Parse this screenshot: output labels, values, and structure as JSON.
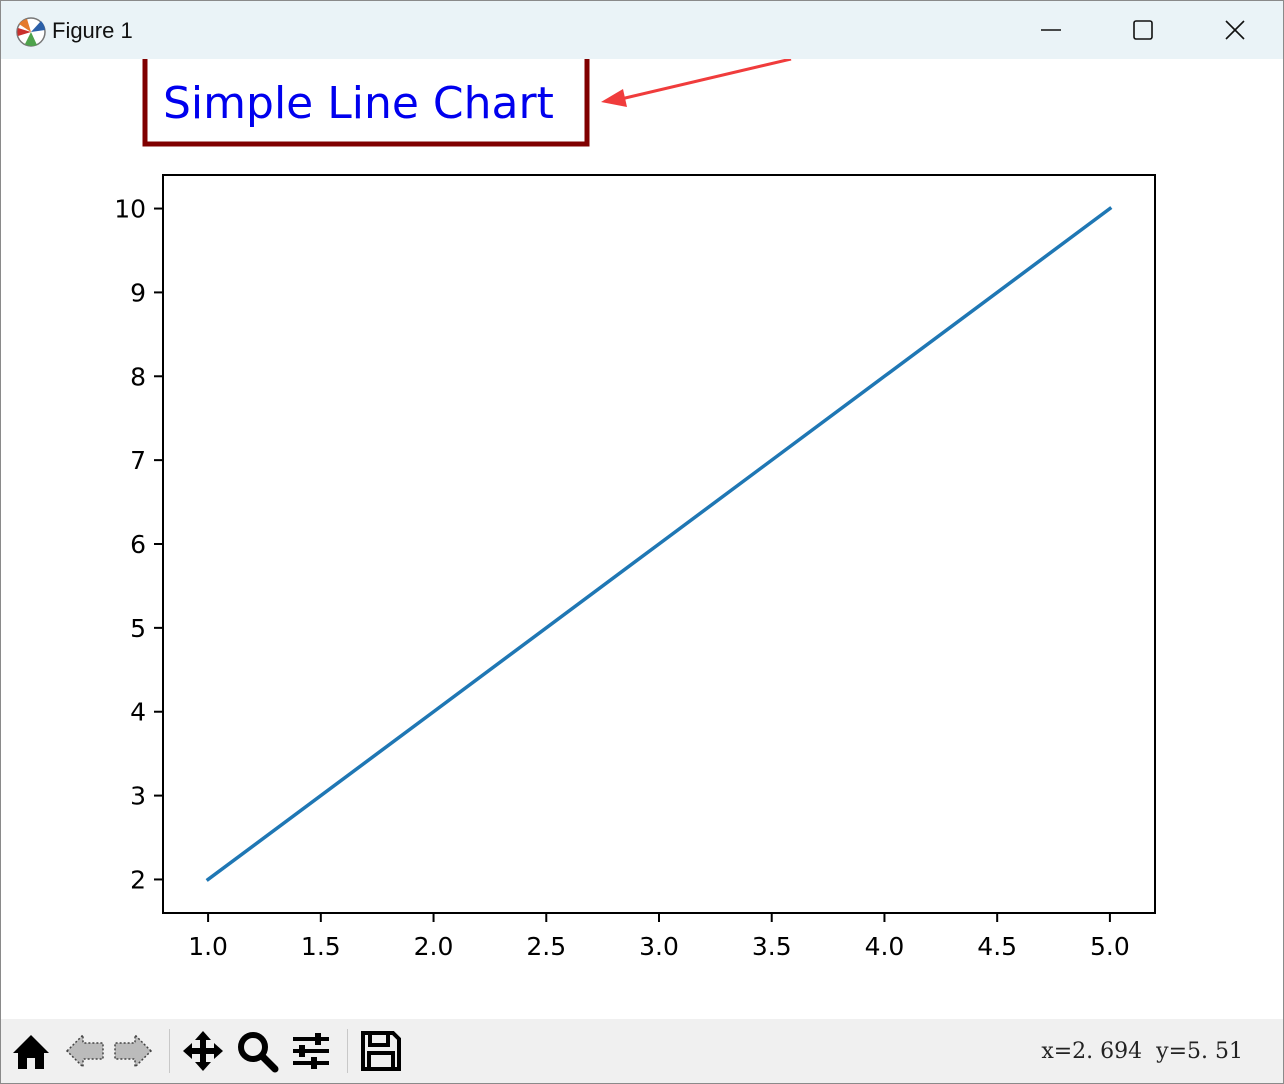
{
  "window": {
    "title": "Figure 1",
    "controls": [
      "minimize",
      "maximize",
      "close"
    ]
  },
  "annotation": {
    "text": "Simple Line Chart",
    "text_color": "#0000ee",
    "box_color": "#800000",
    "arrow_color": "#f03c3c"
  },
  "chart_data": {
    "type": "line",
    "series": [
      {
        "x": [
          1,
          2,
          3,
          4,
          5
        ],
        "y": [
          2,
          4,
          6,
          8,
          10
        ],
        "color": "#1f77b4"
      }
    ],
    "xlim": [
      0.8,
      5.2
    ],
    "ylim": [
      1.6,
      10.4
    ],
    "xticks": [
      "1.0",
      "1.5",
      "2.0",
      "2.5",
      "3.0",
      "3.5",
      "4.0",
      "4.5",
      "5.0"
    ],
    "yticks": [
      "2",
      "3",
      "4",
      "5",
      "6",
      "7",
      "8",
      "9",
      "10"
    ],
    "grid": false
  },
  "toolbar": {
    "tools": [
      {
        "icon": "home-icon"
      },
      {
        "icon": "back-icon"
      },
      {
        "icon": "forward-icon"
      },
      {
        "icon": "pan-icon"
      },
      {
        "icon": "zoom-icon"
      },
      {
        "icon": "configure-subplots-icon"
      },
      {
        "icon": "save-icon"
      }
    ],
    "coords": {
      "x": "x=2. 694",
      "y": "y=5. 51"
    }
  }
}
